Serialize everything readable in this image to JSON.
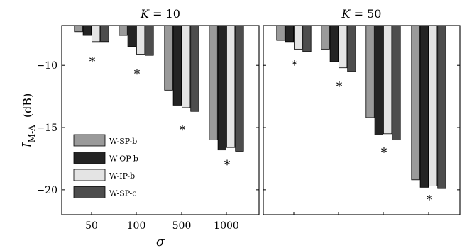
{
  "chart_data": [
    {
      "type": "bar",
      "title": "K = 10",
      "title_italic": "K",
      "title_rest": " = 10",
      "categories": [
        "50",
        "100",
        "500",
        "1000"
      ],
      "xlabel": "σ",
      "ylabel_main": "I",
      "ylabel_sub": "M-A",
      "ylabel_unit": "(dB)",
      "ylim": [
        -22,
        -6.8
      ],
      "yticks": [
        "-10",
        "-15",
        "-20"
      ],
      "ytick_values": [
        -10,
        -15,
        -20
      ],
      "grid": false,
      "legend_position": "bottom-left",
      "bar_baseline": "top",
      "series": [
        {
          "name": "W-SP-b",
          "color": "#9a9a9a",
          "values": [
            -7.3,
            -7.6,
            -12.0,
            -16.0
          ]
        },
        {
          "name": "W-OP-b",
          "color": "#242424",
          "values": [
            -7.6,
            -8.5,
            -13.2,
            -16.8
          ]
        },
        {
          "name": "W-IP-b",
          "color": "#e4e4e4",
          "values": [
            -8.1,
            -9.1,
            -13.4,
            -16.6
          ]
        },
        {
          "name": "W-SP-c",
          "color": "#4d4d4d",
          "values": [
            -8.1,
            -9.2,
            -13.7,
            -16.9
          ]
        }
      ],
      "markers": {
        "symbol": "*",
        "values": [
          -9.5,
          -10.5,
          -15.0,
          -17.8
        ]
      }
    },
    {
      "type": "bar",
      "title": "K = 50",
      "title_italic": "K",
      "title_rest": " = 50",
      "categories": [
        "",
        "",
        "",
        ""
      ],
      "ylim": [
        -22,
        -6.8
      ],
      "grid": false,
      "bar_baseline": "top",
      "series": [
        {
          "name": "W-SP-b",
          "color": "#9a9a9a",
          "values": [
            -8.0,
            -8.7,
            -14.2,
            -19.2
          ]
        },
        {
          "name": "W-OP-b",
          "color": "#242424",
          "values": [
            -8.1,
            -9.7,
            -15.6,
            -19.8
          ]
        },
        {
          "name": "W-IP-b",
          "color": "#e4e4e4",
          "values": [
            -8.7,
            -10.2,
            -15.5,
            -19.7
          ]
        },
        {
          "name": "W-SP-c",
          "color": "#4d4d4d",
          "values": [
            -8.9,
            -10.5,
            -16.0,
            -19.9
          ]
        }
      ],
      "markers": {
        "symbol": "*",
        "values": [
          -9.8,
          -11.5,
          -16.8,
          -20.6
        ]
      }
    }
  ]
}
